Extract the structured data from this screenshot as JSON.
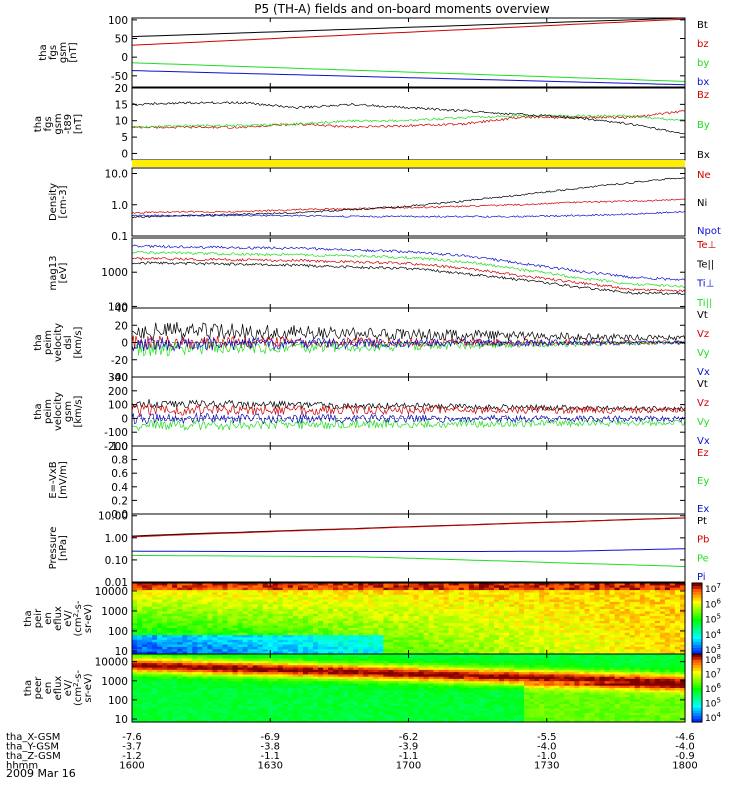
{
  "title": "P5 (TH-A) fields and on-board moments overview",
  "date": "2009 Mar 16",
  "colors": {
    "black": "#000000",
    "red": "#d00000",
    "green": "#22dd22",
    "blue": "#1010cc",
    "yellow": "#ffee00"
  },
  "ephemeris": {
    "rows": [
      {
        "label": "tha_X-GSM",
        "values": [
          "-7.6",
          "-6.9",
          "-6.2",
          "-5.5",
          "-4.6"
        ]
      },
      {
        "label": "tha_Y-GSM",
        "values": [
          "-3.7",
          "-3.8",
          "-3.9",
          "-4.0",
          "-4.0"
        ]
      },
      {
        "label": "tha_Z-GSM",
        "values": [
          "-1.2",
          "-1.1",
          "-1.1",
          "-1.0",
          "-0.9"
        ]
      },
      {
        "label": "hhmm",
        "values": [
          "1600",
          "1630",
          "1700",
          "1730",
          "1800"
        ]
      }
    ]
  },
  "chart_data": [
    {
      "id": "fgs-gsm",
      "type": "line",
      "ylabel": [
        "tha",
        "fgs",
        "gsm",
        "[nT]"
      ],
      "ylim": [
        -80,
        105
      ],
      "ticks": [
        "100",
        "50",
        "0",
        "-50"
      ],
      "tickvals": [
        100,
        50,
        0,
        -50
      ],
      "x": [
        1600,
        1800
      ],
      "series": [
        {
          "name": "Bt",
          "color": "black",
          "values": [
            55,
            105
          ]
        },
        {
          "name": "bz",
          "color": "red",
          "values": [
            32,
            102
          ]
        },
        {
          "name": "by",
          "color": "green",
          "values": [
            -15,
            -65
          ]
        },
        {
          "name": "bx",
          "color": "blue",
          "values": [
            -36,
            -74
          ]
        }
      ]
    },
    {
      "id": "fgs-t89",
      "type": "line",
      "ylabel": [
        "tha",
        "fgs",
        "gsm",
        "-t89",
        "[nT]"
      ],
      "ylim": [
        -2,
        20
      ],
      "ticks": [
        "20",
        "15",
        "10",
        "5",
        "0"
      ],
      "tickvals": [
        20,
        15,
        10,
        5,
        0
      ],
      "x": [
        1600,
        1620,
        1640,
        1660,
        1680,
        1700,
        1720,
        1740,
        1760,
        1780,
        1800
      ],
      "series": [
        {
          "name": "Bz",
          "color": "red",
          "values": [
            8,
            8,
            8,
            9,
            8,
            8.5,
            9,
            11,
            11,
            11,
            13
          ]
        },
        {
          "name": "By",
          "color": "green",
          "values": [
            8,
            8.5,
            8.5,
            9,
            10,
            10,
            11,
            11.5,
            11.5,
            11.5,
            10
          ]
        },
        {
          "name": "Bx",
          "color": "black",
          "values": [
            15,
            15.5,
            15.5,
            14,
            15,
            14,
            13,
            12,
            11,
            9,
            6
          ]
        }
      ]
    },
    {
      "id": "density",
      "type": "line",
      "scale": "log",
      "ylabel": [
        "Density",
        "[cm-3]"
      ],
      "ylim": [
        0.1,
        15
      ],
      "ticks": [
        "10.0",
        "1.0",
        "0.1"
      ],
      "tickvals": [
        10,
        1,
        0.1
      ],
      "x": [
        1600,
        1620,
        1640,
        1660,
        1680,
        1700,
        1720,
        1740,
        1760,
        1780,
        1800
      ],
      "series": [
        {
          "name": "Ne",
          "color": "red",
          "values": [
            0.55,
            0.6,
            0.6,
            0.7,
            0.75,
            0.8,
            0.9,
            1.0,
            1.2,
            1.3,
            1.5
          ]
        },
        {
          "name": "Ni",
          "color": "black",
          "values": [
            0.4,
            0.45,
            0.5,
            0.55,
            0.7,
            0.9,
            1.3,
            2.0,
            3.2,
            5.0,
            7.5
          ]
        },
        {
          "name": "Npot",
          "color": "blue",
          "values": [
            0.45,
            0.45,
            0.45,
            0.45,
            0.42,
            0.42,
            0.42,
            0.42,
            0.45,
            0.5,
            0.6
          ]
        }
      ]
    },
    {
      "id": "temperature",
      "type": "line",
      "scale": "log",
      "ylabel": [
        "mag13",
        "[eV]"
      ],
      "ylim": [
        90,
        10000
      ],
      "ticks": [
        "1000",
        "100"
      ],
      "tickvals": [
        1000,
        100
      ],
      "x": [
        1600,
        1620,
        1640,
        1660,
        1680,
        1700,
        1720,
        1740,
        1760,
        1780,
        1800
      ],
      "series": [
        {
          "name": "Te⊥",
          "color": "red",
          "values": [
            2500,
            2400,
            2300,
            2200,
            2000,
            1800,
            1300,
            800,
            500,
            320,
            280
          ]
        },
        {
          "name": "Te||",
          "color": "black",
          "values": [
            1900,
            1800,
            1700,
            1600,
            1400,
            1300,
            900,
            600,
            380,
            250,
            240
          ]
        },
        {
          "name": "Ti⊥",
          "color": "blue",
          "values": [
            5800,
            5500,
            5200,
            5000,
            4500,
            4000,
            3000,
            1800,
            1100,
            700,
            600
          ]
        },
        {
          "name": "Ti||",
          "color": "green",
          "values": [
            3800,
            3600,
            3400,
            3200,
            3000,
            2700,
            2000,
            1200,
            700,
            450,
            380
          ]
        }
      ]
    },
    {
      "id": "peim-dsl",
      "type": "line",
      "ylabel": [
        "tha",
        "peim",
        "velocity",
        "dsl",
        "[km/s]"
      ],
      "ylim": [
        -40,
        40
      ],
      "ticks": [
        "40",
        "20",
        "0",
        "-20",
        "-40"
      ],
      "tickvals": [
        40,
        20,
        0,
        -20,
        -40
      ],
      "x": [
        1600,
        1800
      ],
      "series": [
        {
          "name": "Vt",
          "color": "black",
          "values": [
            12,
            3
          ]
        },
        {
          "name": "Vz",
          "color": "red",
          "values": [
            0,
            0
          ]
        },
        {
          "name": "Vy",
          "color": "green",
          "values": [
            -8,
            0
          ]
        },
        {
          "name": "Vx",
          "color": "blue",
          "values": [
            -2,
            0
          ]
        }
      ]
    },
    {
      "id": "peim-gsm",
      "type": "line",
      "ylabel": [
        "tha",
        "peim",
        "velocity",
        "gsm",
        "[km/s]"
      ],
      "ylim": [
        -200,
        300
      ],
      "ticks": [
        "300",
        "200",
        "100",
        "0",
        "-100",
        "-200"
      ],
      "tickvals": [
        300,
        200,
        100,
        0,
        -100,
        -200
      ],
      "x": [
        1600,
        1800
      ],
      "series": [
        {
          "name": "Vt",
          "color": "black",
          "values": [
            110,
            70
          ]
        },
        {
          "name": "Vz",
          "color": "red",
          "values": [
            60,
            60
          ]
        },
        {
          "name": "Vy",
          "color": "green",
          "values": [
            -50,
            -30
          ]
        },
        {
          "name": "Vx",
          "color": "blue",
          "values": [
            0,
            -5
          ]
        }
      ]
    },
    {
      "id": "efield",
      "type": "line",
      "ylabel": [
        "E=-VxB",
        "[mV/m]"
      ],
      "ylim": [
        0,
        1
      ],
      "ticks": [
        "1.0",
        "0.8",
        "0.6",
        "0.4",
        "0.2",
        "0.0"
      ],
      "tickvals": [
        1,
        0.8,
        0.6,
        0.4,
        0.2,
        0
      ],
      "x": [],
      "series": [
        {
          "name": "Ez",
          "color": "red",
          "values": []
        },
        {
          "name": "Ey",
          "color": "green",
          "values": []
        },
        {
          "name": "Ex",
          "color": "blue",
          "values": []
        }
      ]
    },
    {
      "id": "pressure",
      "type": "line",
      "scale": "log",
      "ylabel": [
        "Pressure",
        "[nPa]"
      ],
      "ylim": [
        0.01,
        12
      ],
      "ticks": [
        "10.00",
        "1.00",
        "0.10",
        "0.01"
      ],
      "tickvals": [
        10,
        1,
        0.1,
        0.01
      ],
      "x": [
        1600,
        1640,
        1680,
        1720,
        1760,
        1800
      ],
      "series": [
        {
          "name": "Pt",
          "color": "black",
          "values": [
            1.2,
            1.8,
            2.6,
            3.8,
            5.5,
            8.0
          ]
        },
        {
          "name": "Pb",
          "color": "red",
          "values": [
            1.1,
            1.7,
            2.5,
            3.7,
            5.4,
            7.9
          ]
        },
        {
          "name": "Pe",
          "color": "green",
          "values": [
            0.16,
            0.15,
            0.14,
            0.1,
            0.07,
            0.05
          ]
        },
        {
          "name": "Pi",
          "color": "blue",
          "values": [
            0.25,
            0.24,
            0.24,
            0.24,
            0.25,
            0.32
          ]
        }
      ]
    },
    {
      "id": "peir-en-eflux",
      "type": "heatmap",
      "scale": "log",
      "ylabel": [
        "tha",
        "peir",
        "en",
        "eflux",
        "eV/",
        "(cm^2-s-",
        "sr-eV)"
      ],
      "ylim": [
        7,
        25000
      ],
      "ticks": [
        "10000",
        "1000",
        "100",
        "10"
      ],
      "tickvals": [
        10000,
        1000,
        100,
        10
      ],
      "colorbar": {
        "labels": [
          "10^7",
          "10^6",
          "10^5",
          "10^4",
          "10^3"
        ],
        "range": [
          100,
          10000000
        ]
      }
    },
    {
      "id": "peer-en-eflux",
      "type": "heatmap",
      "scale": "log",
      "ylabel": [
        "tha",
        "peer",
        "en",
        "eflux",
        "eV/",
        "(cm^2-s-",
        "sr-eV)"
      ],
      "ylim": [
        7,
        25000
      ],
      "ticks": [
        "10000",
        "1000",
        "100",
        "10"
      ],
      "tickvals": [
        10000,
        1000,
        100,
        10
      ],
      "colorbar": {
        "labels": [
          "10^8",
          "10^7",
          "10^6",
          "10^5",
          "10^4"
        ],
        "range": [
          5000,
          200000000
        ]
      }
    }
  ]
}
